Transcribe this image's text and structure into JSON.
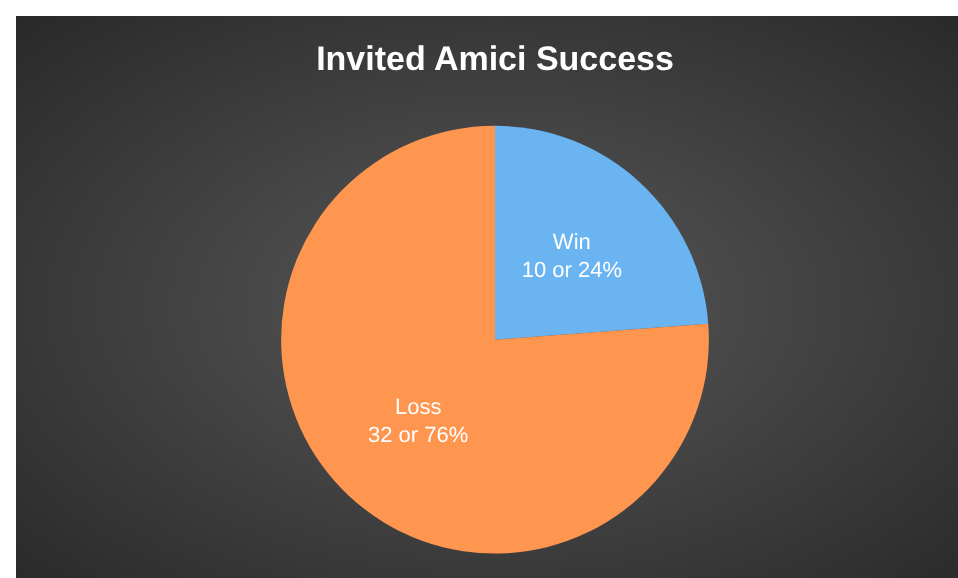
{
  "chart_data": {
    "type": "pie",
    "title": "Invited Amici Success",
    "categories": [
      "Win",
      "Loss"
    ],
    "values": [
      10,
      32
    ],
    "colors": [
      "#6ab4f2",
      "#ff9650"
    ],
    "value_labels": [
      "10 or 24%",
      "32 or 76%"
    ],
    "legend": false
  }
}
